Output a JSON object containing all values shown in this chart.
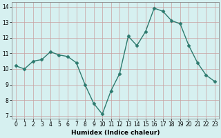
{
  "x": [
    0,
    1,
    2,
    3,
    4,
    5,
    6,
    7,
    8,
    9,
    10,
    11,
    12,
    13,
    14,
    15,
    16,
    17,
    18,
    19,
    20,
    21,
    22,
    23
  ],
  "y": [
    10.2,
    10.0,
    10.5,
    10.6,
    11.1,
    10.9,
    10.8,
    10.4,
    9.0,
    7.8,
    7.1,
    8.6,
    9.7,
    12.1,
    11.5,
    12.4,
    13.9,
    13.7,
    13.1,
    12.9,
    11.5,
    10.4,
    9.6,
    9.2
  ],
  "xlabel": "Humidex (Indice chaleur)",
  "xlim": [
    -0.5,
    23.5
  ],
  "ylim": [
    6.8,
    14.3
  ],
  "yticks": [
    7,
    8,
    9,
    10,
    11,
    12,
    13,
    14
  ],
  "xticks": [
    0,
    1,
    2,
    3,
    4,
    5,
    6,
    7,
    8,
    9,
    10,
    11,
    12,
    13,
    14,
    15,
    16,
    17,
    18,
    19,
    20,
    21,
    22,
    23
  ],
  "line_color": "#2d7a6e",
  "bg_color": "#d6f0f0",
  "grid_color": "#c0c0c0",
  "markersize": 2.5,
  "linewidth": 1.0,
  "tick_fontsize": 5.5,
  "xlabel_fontsize": 6.5
}
